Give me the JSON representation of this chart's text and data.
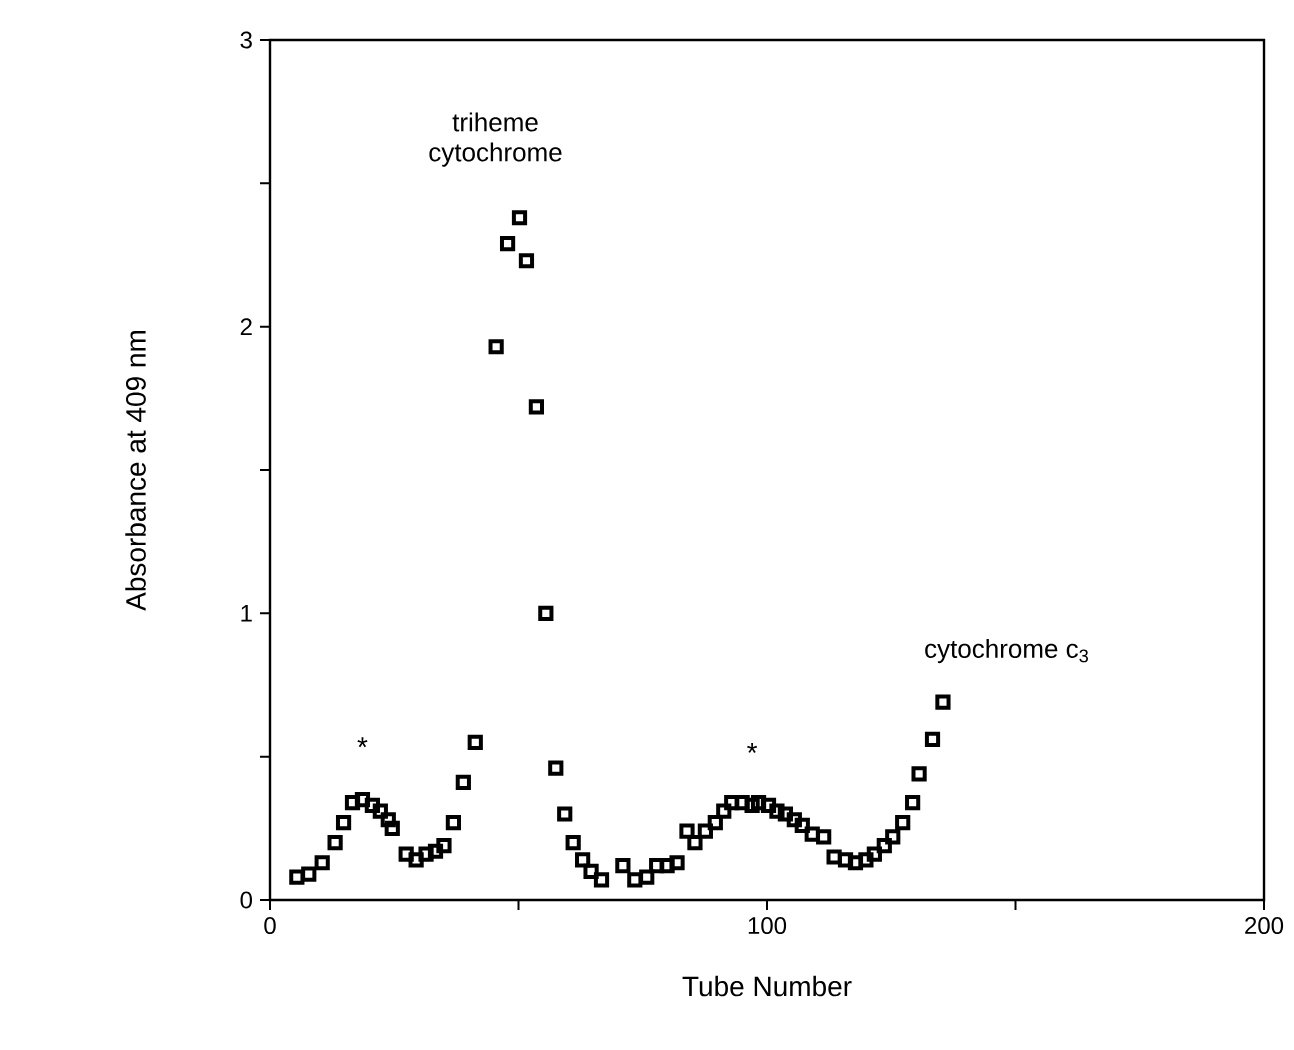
{
  "chart_data": {
    "type": "scatter",
    "xlabel": "Tube Number",
    "ylabel": "Absorbance at 409 nm",
    "marker": "square",
    "xlim": [
      0,
      200
    ],
    "ylim": [
      0,
      3
    ],
    "xticks": [
      0,
      {
        "value": 50,
        "label": null
      },
      100,
      {
        "value": 150,
        "label": null
      },
      200
    ],
    "yticks": [
      0,
      {
        "value": 0.5,
        "label": null
      },
      1,
      {
        "value": 1.5,
        "label": null
      },
      2,
      {
        "value": 2.5,
        "label": null
      },
      3
    ],
    "annotations": [
      {
        "text": "triheme cytochrome",
        "x": 50.2,
        "y": 2.38
      },
      {
        "text": "cytochrome c$_{3}$",
        "x": 135.4,
        "y": 0.69
      },
      {
        "text": "*",
        "x": 18.6,
        "y": 0.35
      },
      {
        "text": "*",
        "x": 97.0,
        "y": 0.33
      }
    ],
    "series": [
      {
        "color": "#000000",
        "x": [
          5.4,
          7.8,
          10.5,
          13.1,
          14.8,
          16.6,
          18.6,
          20.6,
          22.2,
          23.8,
          24.6,
          27.4,
          29.4,
          31.4,
          33.3,
          35.0,
          36.9,
          38.9,
          41.3,
          45.5,
          47.8,
          50.2,
          51.6,
          53.6,
          55.5,
          57.5,
          59.3,
          61.0,
          62.9,
          64.6,
          66.7,
          71.0,
          73.4,
          75.8,
          77.8,
          79.9,
          81.9,
          83.9,
          85.5,
          87.6,
          89.6,
          91.3,
          92.9,
          95.0,
          97.0,
          98.3,
          100.3,
          102.0,
          103.7,
          105.5,
          107.1,
          109.1,
          111.4,
          113.5,
          115.8,
          117.8,
          119.9,
          121.6,
          123.6,
          125.3,
          127.3,
          129.3,
          130.6,
          133.3,
          135.4
        ],
        "values": [
          0.08,
          0.09,
          0.13,
          0.2,
          0.27,
          0.34,
          0.35,
          0.33,
          0.31,
          0.28,
          0.25,
          0.16,
          0.14,
          0.16,
          0.17,
          0.19,
          0.27,
          0.41,
          0.55,
          1.93,
          2.29,
          2.38,
          2.23,
          1.72,
          1.0,
          0.46,
          0.3,
          0.2,
          0.14,
          0.1,
          0.07,
          0.12,
          0.07,
          0.08,
          0.12,
          0.12,
          0.13,
          0.24,
          0.2,
          0.24,
          0.27,
          0.31,
          0.34,
          0.34,
          0.33,
          0.34,
          0.33,
          0.31,
          0.3,
          0.28,
          0.26,
          0.23,
          0.22,
          0.15,
          0.14,
          0.13,
          0.14,
          0.16,
          0.19,
          0.22,
          0.27,
          0.34,
          0.44,
          0.56,
          0.69
        ]
      }
    ]
  }
}
